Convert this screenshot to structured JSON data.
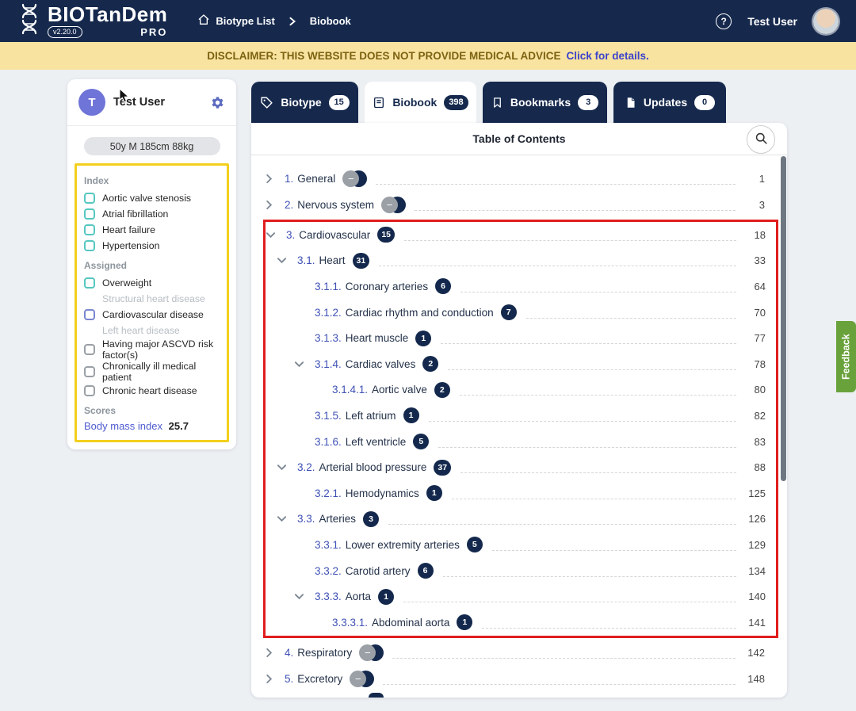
{
  "header": {
    "logo": "BIOTanDem",
    "version": "v2.20.0",
    "edition": "PRO",
    "breadcrumb": [
      {
        "label": "Biotype List"
      },
      {
        "label": "Biobook"
      }
    ],
    "help_glyph": "?",
    "user_name": "Test User"
  },
  "disclaimer": {
    "text": "DISCLAIMER: THIS WEBSITE DOES NOT PROVIDE MEDICAL ADVICE",
    "link": "Click for details."
  },
  "sidebar": {
    "avatar_initial": "T",
    "user_name": "Test User",
    "summary_pill": "50y M 185cm 88kg",
    "index_label": "Index",
    "index_items": [
      "Aortic valve stenosis",
      "Atrial fibrillation",
      "Heart failure",
      "Hypertension"
    ],
    "assigned_label": "Assigned",
    "assigned_items": [
      {
        "label": "Overweight",
        "type": "checkbox",
        "accent": "teal"
      },
      {
        "label": "Structural heart disease",
        "type": "text"
      },
      {
        "label": "Cardiovascular disease",
        "type": "checkbox",
        "accent": "indigo"
      },
      {
        "label": "Left heart disease",
        "type": "text"
      },
      {
        "label": "Having major ASCVD risk factor(s)",
        "type": "checkbox",
        "accent": "gray"
      },
      {
        "label": "Chronically ill medical patient",
        "type": "checkbox",
        "accent": "gray"
      },
      {
        "label": "Chronic heart disease",
        "type": "checkbox",
        "accent": "gray"
      }
    ],
    "scores_label": "Scores",
    "score": {
      "label": "Body mass index",
      "value": "25.7"
    }
  },
  "tabs": [
    {
      "label": "Biotype",
      "count": "15",
      "icon": "tag-icon",
      "active": false
    },
    {
      "label": "Biobook",
      "count": "398",
      "icon": "book-icon",
      "active": true
    },
    {
      "label": "Bookmarks",
      "count": "3",
      "icon": "bookmark-icon",
      "active": false
    },
    {
      "label": "Updates",
      "count": "0",
      "icon": "document-icon",
      "active": false
    }
  ],
  "toc": {
    "title": "Table of Contents",
    "entries": [
      {
        "number": "1.",
        "label": "General",
        "level": 1,
        "chevron": "right",
        "badge": "collapsed",
        "page": "1",
        "highlight": false
      },
      {
        "number": "2.",
        "label": "Nervous system",
        "level": 1,
        "chevron": "right",
        "badge": "collapsed",
        "page": "3",
        "highlight": false
      },
      {
        "number": "3.",
        "label": "Cardiovascular",
        "level": 1,
        "chevron": "down",
        "count": "15",
        "page": "18",
        "highlight": true
      },
      {
        "number": "3.1.",
        "label": "Heart",
        "level": 2,
        "chevron": "down",
        "count": "31",
        "page": "33",
        "highlight": true
      },
      {
        "number": "3.1.1.",
        "label": "Coronary arteries",
        "level": 3,
        "count": "6",
        "page": "64",
        "highlight": true
      },
      {
        "number": "3.1.2.",
        "label": "Cardiac rhythm and conduction",
        "level": 3,
        "count": "7",
        "page": "70",
        "highlight": true
      },
      {
        "number": "3.1.3.",
        "label": "Heart muscle",
        "level": 3,
        "count": "1",
        "page": "77",
        "highlight": true
      },
      {
        "number": "3.1.4.",
        "label": "Cardiac valves",
        "level": 3,
        "chevron": "down",
        "count": "2",
        "page": "78",
        "highlight": true
      },
      {
        "number": "3.1.4.1.",
        "label": "Aortic valve",
        "level": 4,
        "count": "2",
        "page": "80",
        "highlight": true
      },
      {
        "number": "3.1.5.",
        "label": "Left atrium",
        "level": 3,
        "count": "1",
        "page": "82",
        "highlight": true
      },
      {
        "number": "3.1.6.",
        "label": "Left ventricle",
        "level": 3,
        "count": "5",
        "page": "83",
        "highlight": true
      },
      {
        "number": "3.2.",
        "label": "Arterial blood pressure",
        "level": 2,
        "chevron": "down",
        "count": "37",
        "page": "88",
        "highlight": true
      },
      {
        "number": "3.2.1.",
        "label": "Hemodynamics",
        "level": 3,
        "count": "1",
        "page": "125",
        "highlight": true
      },
      {
        "number": "3.3.",
        "label": "Arteries",
        "level": 2,
        "chevron": "down",
        "count": "3",
        "page": "126",
        "highlight": true
      },
      {
        "number": "3.3.1.",
        "label": "Lower extremity arteries",
        "level": 3,
        "count": "5",
        "page": "129",
        "highlight": true
      },
      {
        "number": "3.3.2.",
        "label": "Carotid artery",
        "level": 3,
        "count": "6",
        "page": "134",
        "highlight": true
      },
      {
        "number": "3.3.3.",
        "label": "Aorta",
        "level": 3,
        "chevron": "down",
        "count": "1",
        "page": "140",
        "highlight": true
      },
      {
        "number": "3.3.3.1.",
        "label": "Abdominal aorta",
        "level": 4,
        "count": "1",
        "page": "141",
        "highlight": true
      },
      {
        "number": "4.",
        "label": "Respiratory",
        "level": 1,
        "chevron": "right",
        "badge": "collapsed",
        "page": "142",
        "highlight": false
      },
      {
        "number": "5.",
        "label": "Excretory",
        "level": 1,
        "chevron": "right",
        "badge": "collapsed",
        "page": "148",
        "highlight": false
      }
    ]
  },
  "feedback_label": "Feedback",
  "colors": {
    "header_navy": "#16294d",
    "badge_navy": "#13284c",
    "highlight_red": "#e11d1d",
    "highlight_yellow": "#f3d01e",
    "feedback_green": "#69a23b",
    "checkbox_teal": "#56c7c0",
    "link_blue": "#3f51b5",
    "disclaimer_bg": "#f8e3a1"
  }
}
